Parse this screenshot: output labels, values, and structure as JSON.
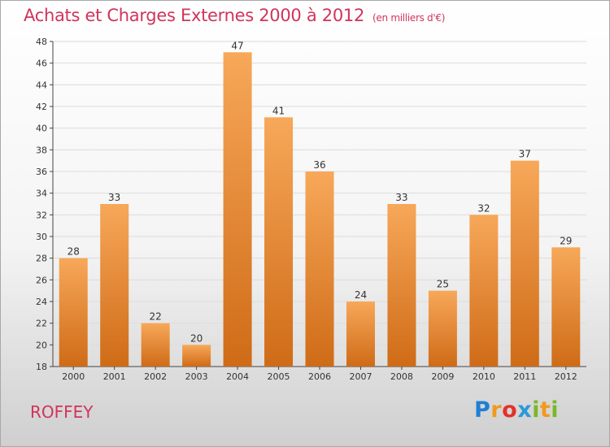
{
  "title": "Achats et Charges Externes 2000 à 2012",
  "unit": "(en milliers d'€)",
  "town": "ROFFEY",
  "logo": {
    "text": "Proxiti",
    "letters": [
      "P",
      "r",
      "o",
      "x",
      "i",
      "t",
      "i"
    ]
  },
  "colors": {
    "title": "#d1345b",
    "bar_light": "#f7a859",
    "bar_dark": "#cf6b17",
    "grid": "#dcdcdc"
  },
  "chart_data": {
    "type": "bar",
    "categories": [
      "2000",
      "2001",
      "2002",
      "2003",
      "2004",
      "2005",
      "2006",
      "2007",
      "2008",
      "2009",
      "2010",
      "2011",
      "2012"
    ],
    "values": [
      28,
      33,
      22,
      20,
      47,
      41,
      36,
      24,
      33,
      25,
      32,
      37,
      29
    ],
    "ylim": [
      18,
      48
    ],
    "yticks": [
      18,
      20,
      22,
      24,
      26,
      28,
      30,
      32,
      34,
      36,
      38,
      40,
      42,
      44,
      46,
      48
    ],
    "grid": true,
    "xlabel": "",
    "ylabel": ""
  }
}
